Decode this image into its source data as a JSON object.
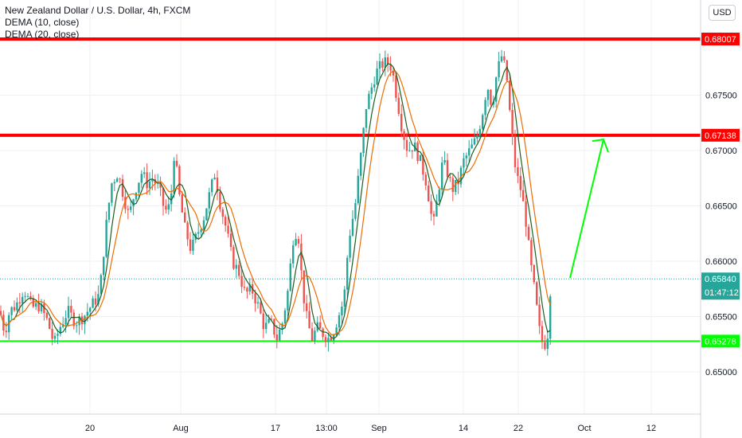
{
  "legend": {
    "symbol_title": "New Zealand Dollar / U.S. Dollar, 4h, FXCM",
    "indicator_1": "DEMA (10, close)",
    "indicator_2": "DEMA (20, close)"
  },
  "currency_button": "USD",
  "chart_data": {
    "type": "candlestick",
    "y_axis": {
      "ticks": [
        "0.68000",
        "0.67500",
        "0.67000",
        "0.66500",
        "0.66000",
        "0.65500",
        "0.65000"
      ],
      "range": [
        0.6475,
        0.6835
      ]
    },
    "x_axis": {
      "ticks": [
        "20",
        "Aug",
        "17",
        "13:00",
        "Sep",
        "14",
        "22",
        "Oct",
        "12"
      ]
    },
    "horizontal_levels": [
      {
        "price": "0.68007",
        "value": 0.68007,
        "color": "#ff0000"
      },
      {
        "price": "0.67138",
        "value": 0.67138,
        "color": "#ff0000"
      },
      {
        "price": "0.65278",
        "value": 0.65278,
        "color": "#00ff00"
      }
    ],
    "last_price": {
      "price": "0.65840",
      "value": 0.6584,
      "countdown": "01:47:12",
      "color": "#26a69a"
    },
    "path_points": [
      [
        0,
        0.6555
      ],
      [
        6,
        0.6535
      ],
      [
        12,
        0.6555
      ],
      [
        20,
        0.656
      ],
      [
        30,
        0.6575
      ],
      [
        40,
        0.6558
      ],
      [
        50,
        0.656
      ],
      [
        60,
        0.6545
      ],
      [
        68,
        0.6525
      ],
      [
        75,
        0.654
      ],
      [
        85,
        0.6555
      ],
      [
        95,
        0.6545
      ],
      [
        105,
        0.655
      ],
      [
        115,
        0.656
      ],
      [
        125,
        0.657
      ],
      [
        133,
        0.663
      ],
      [
        140,
        0.667
      ],
      [
        148,
        0.668
      ],
      [
        155,
        0.666
      ],
      [
        162,
        0.664
      ],
      [
        170,
        0.6665
      ],
      [
        178,
        0.668
      ],
      [
        185,
        0.667
      ],
      [
        192,
        0.6675
      ],
      [
        200,
        0.6665
      ],
      [
        207,
        0.6645
      ],
      [
        214,
        0.665
      ],
      [
        219,
        0.67
      ],
      [
        225,
        0.666
      ],
      [
        232,
        0.663
      ],
      [
        240,
        0.661
      ],
      [
        248,
        0.6625
      ],
      [
        256,
        0.664
      ],
      [
        263,
        0.666
      ],
      [
        270,
        0.668
      ],
      [
        277,
        0.665
      ],
      [
        284,
        0.663
      ],
      [
        292,
        0.66
      ],
      [
        300,
        0.659
      ],
      [
        308,
        0.657
      ],
      [
        316,
        0.6575
      ],
      [
        324,
        0.656
      ],
      [
        332,
        0.654
      ],
      [
        340,
        0.6545
      ],
      [
        348,
        0.653
      ],
      [
        355,
        0.6545
      ],
      [
        362,
        0.6575
      ],
      [
        368,
        0.662
      ],
      [
        374,
        0.663
      ],
      [
        380,
        0.6575
      ],
      [
        386,
        0.6545
      ],
      [
        392,
        0.653
      ],
      [
        398,
        0.654
      ],
      [
        405,
        0.6535
      ],
      [
        412,
        0.653
      ],
      [
        418,
        0.6535
      ],
      [
        425,
        0.655
      ],
      [
        432,
        0.6565
      ],
      [
        438,
        0.662
      ],
      [
        446,
        0.665
      ],
      [
        454,
        0.67
      ],
      [
        460,
        0.674
      ],
      [
        466,
        0.6755
      ],
      [
        472,
        0.677
      ],
      [
        480,
        0.6778
      ],
      [
        486,
        0.678
      ],
      [
        492,
        0.6775
      ],
      [
        498,
        0.675
      ],
      [
        505,
        0.672
      ],
      [
        512,
        0.67
      ],
      [
        520,
        0.6705
      ],
      [
        528,
        0.669
      ],
      [
        536,
        0.667
      ],
      [
        544,
        0.663
      ],
      [
        550,
        0.666
      ],
      [
        556,
        0.669
      ],
      [
        562,
        0.668
      ],
      [
        568,
        0.6665
      ],
      [
        575,
        0.667
      ],
      [
        582,
        0.669
      ],
      [
        590,
        0.67
      ],
      [
        598,
        0.671
      ],
      [
        605,
        0.673
      ],
      [
        612,
        0.676
      ],
      [
        618,
        0.674
      ],
      [
        624,
        0.677
      ],
      [
        630,
        0.6785
      ],
      [
        636,
        0.677
      ],
      [
        642,
        0.672
      ],
      [
        648,
        0.668
      ],
      [
        654,
        0.6665
      ],
      [
        660,
        0.664
      ],
      [
        666,
        0.66
      ],
      [
        672,
        0.657
      ],
      [
        678,
        0.6535
      ],
      [
        683,
        0.6522
      ],
      [
        688,
        0.6535
      ],
      [
        692,
        0.6584
      ]
    ],
    "arrow": {
      "color": "#00ff00",
      "from": [
        716,
        0.6585
      ],
      "to": [
        758,
        0.671
      ]
    }
  }
}
